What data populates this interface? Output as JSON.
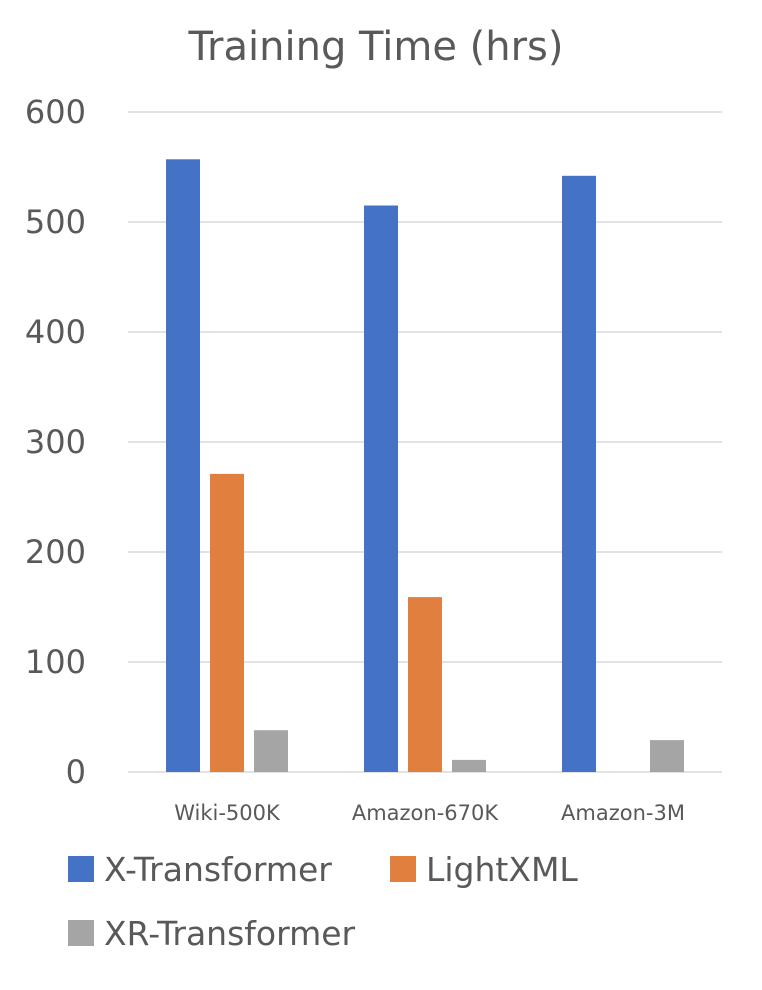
{
  "chart_data": {
    "type": "bar",
    "title": "Training Time (hrs)",
    "xlabel": "",
    "ylabel": "",
    "categories": [
      "Wiki-500K",
      "Amazon-670K",
      "Amazon-3M"
    ],
    "series": [
      {
        "name": "X-Transformer",
        "color": "#4472C4",
        "values": [
          557,
          515,
          542
        ]
      },
      {
        "name": "LightXML",
        "color": "#E07F3E",
        "values": [
          271,
          159,
          null
        ]
      },
      {
        "name": "XR-Transformer",
        "color": "#A5A5A5",
        "values": [
          38,
          11,
          29
        ]
      }
    ],
    "ylim": [
      0,
      600
    ],
    "yticks": [
      0,
      100,
      200,
      300,
      400,
      500,
      600
    ],
    "grid": true,
    "legend": "bottom"
  }
}
